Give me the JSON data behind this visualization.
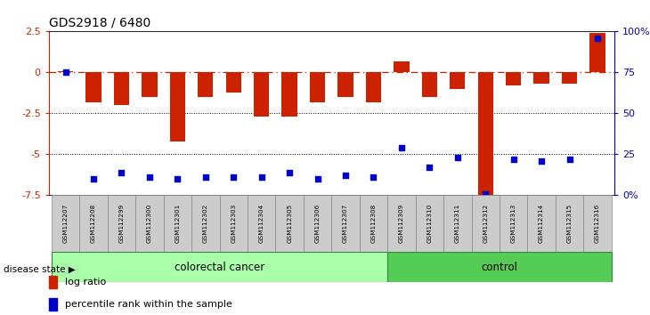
{
  "title": "GDS2918 / 6480",
  "samples": [
    "GSM112207",
    "GSM112208",
    "GSM112299",
    "GSM112300",
    "GSM112301",
    "GSM112302",
    "GSM112303",
    "GSM112304",
    "GSM112305",
    "GSM112306",
    "GSM112307",
    "GSM112308",
    "GSM112309",
    "GSM112310",
    "GSM112311",
    "GSM112312",
    "GSM112313",
    "GSM112314",
    "GSM112315",
    "GSM112316"
  ],
  "log_ratio": [
    0.05,
    -1.8,
    -2.0,
    -1.5,
    -4.2,
    -1.5,
    -1.2,
    -2.7,
    -2.7,
    -1.8,
    -1.5,
    -1.8,
    0.7,
    -1.5,
    -1.0,
    -7.5,
    -0.8,
    -0.7,
    -0.7,
    2.4
  ],
  "percentile": [
    75,
    10,
    14,
    11,
    10,
    11,
    11,
    11,
    14,
    10,
    12,
    11,
    29,
    17,
    23,
    1,
    22,
    21,
    22,
    96
  ],
  "colorectal_count": 12,
  "control_count": 8,
  "ylim_left": [
    -7.5,
    2.5
  ],
  "ylim_right": [
    0,
    100
  ],
  "bar_color": "#cc2200",
  "dot_color": "#0000cc",
  "bg_color_colorectal": "#aaffaa",
  "bg_color_control": "#55cc55",
  "left_ticks": [
    -7.5,
    -5.0,
    -2.5,
    0.0,
    2.5
  ],
  "left_tick_labels": [
    "-7.5",
    "-5",
    "-2.5",
    "0",
    "2.5"
  ],
  "right_ticks": [
    0,
    25,
    50,
    75,
    100
  ],
  "right_tick_labels": [
    "0%",
    "25",
    "50",
    "75",
    "100%"
  ],
  "grid_lines": [
    -2.5,
    -5.0
  ]
}
